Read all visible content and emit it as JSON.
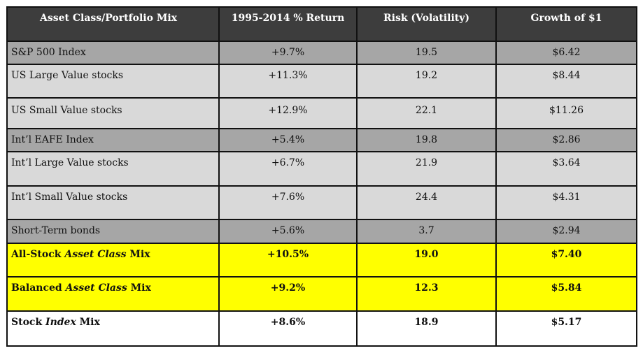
{
  "chart_data": {
    "type": "table",
    "columns": [
      "Asset Class/Portfolio Mix",
      "1995-2014 % Return",
      "Risk (Volatility)",
      "Growth of $1"
    ],
    "rows": [
      {
        "pre": "S&P 500 Index",
        "em": "",
        "post": "",
        "return": "+9.7%",
        "risk": "19.5",
        "growth": "$6.42"
      },
      {
        "pre": "US Large Value stocks",
        "em": "",
        "post": "",
        "return": "+11.3%",
        "risk": "19.2",
        "growth": "$8.44"
      },
      {
        "pre": "US Small Value stocks",
        "em": "",
        "post": "",
        "return": "+12.9%",
        "risk": "22.1",
        "growth": "$11.26"
      },
      {
        "pre": "Int’l EAFE Index",
        "em": "",
        "post": "",
        "return": "+5.4%",
        "risk": "19.8",
        "growth": "$2.86"
      },
      {
        "pre": "Int’l Large Value stocks",
        "em": "",
        "post": "",
        "return": "+6.7%",
        "risk": "21.9",
        "growth": "$3.64"
      },
      {
        "pre": "Int’l Small Value stocks",
        "em": "",
        "post": "",
        "return": "+7.6%",
        "risk": "24.4",
        "growth": "$4.31"
      },
      {
        "pre": "Short-Term bonds",
        "em": "",
        "post": "",
        "return": "+5.6%",
        "risk": "3.7",
        "growth": "$2.94"
      },
      {
        "pre": "All-Stock ",
        "em": "Asset Class",
        "post": " Mix",
        "return": "+10.5%",
        "risk": "19.0",
        "growth": "$7.40"
      },
      {
        "pre": "Balanced ",
        "em": "Asset Class",
        "post": " Mix",
        "return": "+9.2%",
        "risk": "12.3",
        "growth": "$5.84"
      },
      {
        "pre": "Stock ",
        "em": "Index",
        "post": " Mix",
        "return": "+8.6%",
        "risk": "18.9",
        "growth": "$5.17"
      }
    ],
    "colors": {
      "header_bg": "#3d3d3d",
      "index_row_bg": "#a6a6a6",
      "value_row_bg": "#d9d9d9",
      "highlight_bg": "#ffff00",
      "plain_bg": "#ffffff"
    }
  }
}
